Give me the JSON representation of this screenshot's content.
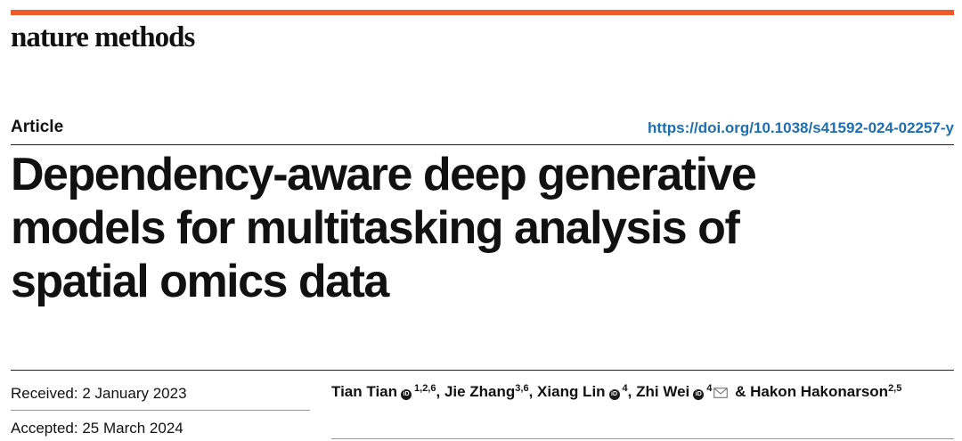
{
  "journal": "nature methods",
  "article_type": "Article",
  "doi": "https://doi.org/10.1038/s41592-024-02257-y",
  "title": "Dependency-aware deep generative models for multitasking analysis of spatial omics data",
  "dates": {
    "received_label": "Received:",
    "received_value": "2 January 2023",
    "accepted_label": "Accepted:",
    "accepted_value": "25 March 2024"
  },
  "authors": [
    {
      "name": "Tian Tian",
      "affil": "1,2,6",
      "orcid": true
    },
    {
      "name": "Jie Zhang",
      "affil": "3,6",
      "orcid": false
    },
    {
      "name": "Xiang Lin",
      "affil": "4",
      "orcid": true
    },
    {
      "name": "Zhi Wei",
      "affil": "4",
      "orcid": true,
      "corresponding": true
    },
    {
      "name": "Hakon Hakonarson",
      "affil": "2,5",
      "orcid": false
    }
  ],
  "author_separators": [
    ", ",
    ", ",
    ", ",
    " & "
  ],
  "colors": {
    "accent": "#f05a28",
    "link": "#1d6fb0"
  },
  "icons": {
    "orcid": "orcid-icon",
    "corresponding": "envelope-icon"
  }
}
